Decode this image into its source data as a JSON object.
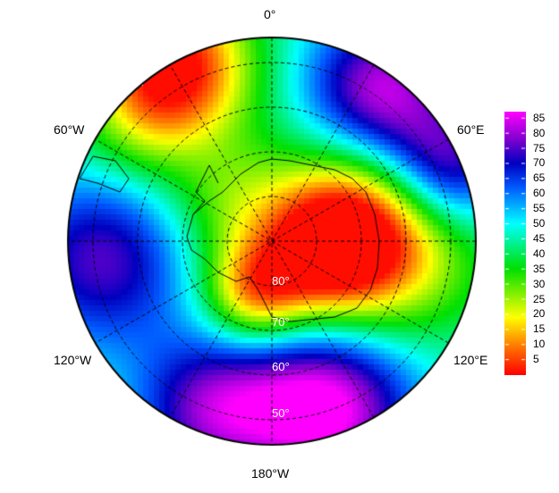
{
  "map": {
    "projection": "south polar stereographic",
    "longitude_labels": [
      "0°",
      "60°E",
      "120°E",
      "180°W",
      "120°W",
      "60°W"
    ],
    "latitude_labels": [
      "80°",
      "70°",
      "60°",
      "50°"
    ]
  },
  "colorbar": {
    "ticks": [
      "85",
      "80",
      "75",
      "70",
      "65",
      "60",
      "55",
      "50",
      "45",
      "40",
      "35",
      "30",
      "25",
      "20",
      "15",
      "10",
      "5"
    ],
    "range": [
      0,
      87
    ],
    "colors": [
      "#ff0000",
      "#ff8000",
      "#ffff00",
      "#00e000",
      "#00ffff",
      "#0050ff",
      "#0000c0",
      "#8000d0",
      "#ff00ff"
    ]
  }
}
